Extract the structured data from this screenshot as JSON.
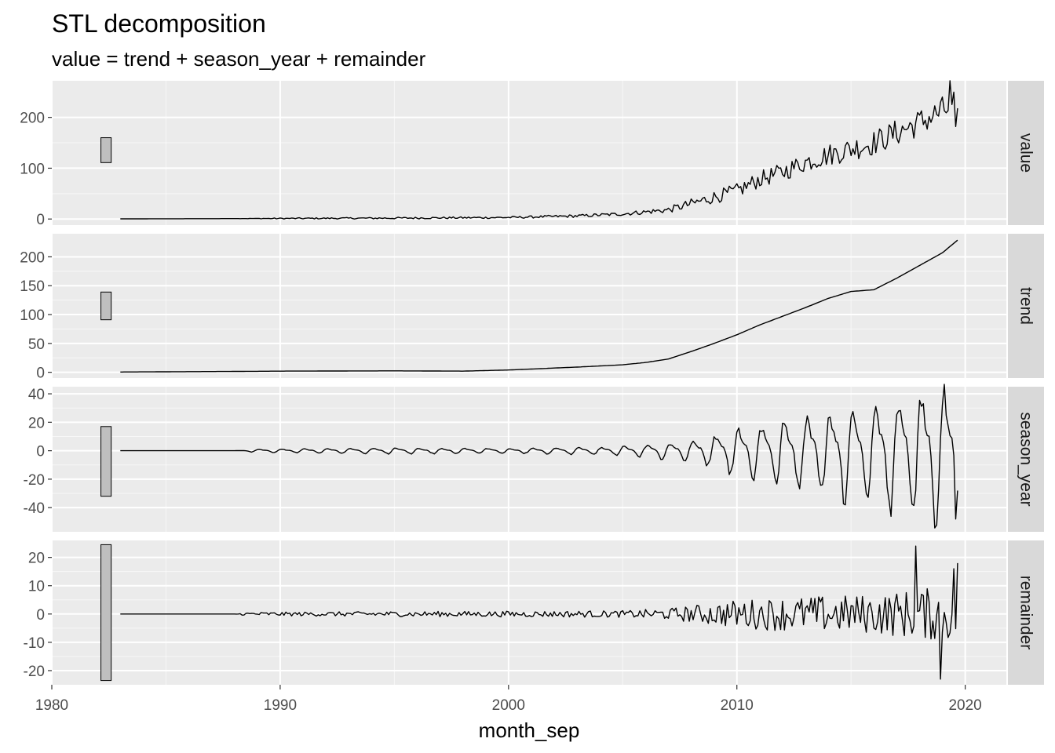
{
  "chart_data": {
    "type": "line",
    "title": "STL decomposition",
    "subtitle": "value = trend + season_year + remainder",
    "xlabel": "month_sep",
    "xlim": [
      1980,
      2021.8
    ],
    "x_ticks": [
      1980,
      1990,
      2000,
      2010,
      2020
    ],
    "x_tick_labels": [
      "1980",
      "1990",
      "2000",
      "2010",
      "2020"
    ],
    "x_start": 1983.0,
    "x_end": 2019.7,
    "grid": true,
    "theme_colors": {
      "panel": "#ebebeb",
      "grid": "#ffffff",
      "strip": "#d9d9d9",
      "line": "#000000",
      "scale_bar": "#bfbfbf"
    },
    "panels": [
      {
        "name": "value",
        "ylim": [
          -12,
          272
        ],
        "y_ticks": [
          0,
          100,
          200
        ],
        "y_tick_labels": [
          "0",
          "100",
          "200"
        ],
        "scale_bar": [
          111,
          160
        ],
        "keyframes": [
          [
            1983,
            0.3
          ],
          [
            1988,
            0.8
          ],
          [
            1995,
            1.8
          ],
          [
            2000,
            3
          ],
          [
            2003,
            6
          ],
          [
            2005,
            10
          ],
          [
            2007,
            18
          ],
          [
            2008,
            30
          ],
          [
            2009,
            43
          ],
          [
            2010,
            55
          ],
          [
            2011,
            78
          ],
          [
            2012,
            92
          ],
          [
            2013,
            112
          ],
          [
            2014,
            126
          ],
          [
            2015,
            138
          ],
          [
            2016,
            150
          ],
          [
            2017,
            170
          ],
          [
            2018,
            190
          ],
          [
            2019,
            212
          ],
          [
            2019.7,
            228
          ]
        ],
        "noise": [
          [
            1983,
            0
          ],
          [
            1988,
            0
          ],
          [
            1990,
            1.2
          ],
          [
            1995,
            1.8
          ],
          [
            2000,
            2
          ],
          [
            2005,
            3.5
          ],
          [
            2007,
            6
          ],
          [
            2008,
            10
          ],
          [
            2010,
            15
          ],
          [
            2012,
            18
          ],
          [
            2014,
            22
          ],
          [
            2016,
            25
          ],
          [
            2018,
            28
          ],
          [
            2019.7,
            32
          ]
        ],
        "extra_points": [
          [
            2019.3,
            272
          ],
          [
            2019.6,
            182
          ],
          [
            2019.7,
            218
          ]
        ]
      },
      {
        "name": "trend",
        "ylim": [
          -10,
          240
        ],
        "y_ticks": [
          0,
          50,
          100,
          150,
          200
        ],
        "y_tick_labels": [
          "0",
          "50",
          "100",
          "150",
          "200"
        ],
        "scale_bar": [
          91,
          139
        ],
        "keyframes": [
          [
            1983,
            0.5
          ],
          [
            1988,
            1.5
          ],
          [
            1990,
            2
          ],
          [
            1995,
            2.5
          ],
          [
            1998,
            2
          ],
          [
            2000,
            4
          ],
          [
            2003,
            9
          ],
          [
            2005,
            13
          ],
          [
            2006,
            17
          ],
          [
            2007,
            23
          ],
          [
            2008,
            36
          ],
          [
            2009,
            50
          ],
          [
            2010,
            65
          ],
          [
            2011,
            82
          ],
          [
            2012,
            97
          ],
          [
            2013,
            112
          ],
          [
            2014,
            128
          ],
          [
            2015,
            140
          ],
          [
            2016,
            143
          ],
          [
            2017,
            163
          ],
          [
            2018,
            185
          ],
          [
            2019,
            207
          ],
          [
            2019.7,
            230
          ]
        ],
        "noise": [
          [
            1983,
            0
          ],
          [
            2019.7,
            0
          ]
        ]
      },
      {
        "name": "season_year",
        "ylim": [
          -57,
          45
        ],
        "y_ticks": [
          -40,
          -20,
          0,
          20,
          40
        ],
        "y_tick_labels": [
          "-40",
          "-20",
          "0",
          "20",
          "40"
        ],
        "scale_bar": [
          -32,
          17
        ],
        "keyframes": [
          [
            1983,
            0
          ],
          [
            2019.7,
            0
          ]
        ],
        "seasonal_amplitude": [
          [
            1983,
            0
          ],
          [
            1988,
            0
          ],
          [
            1989,
            1
          ],
          [
            1995,
            2
          ],
          [
            2000,
            1.5
          ],
          [
            2004,
            2.5
          ],
          [
            2006,
            4
          ],
          [
            2008,
            7
          ],
          [
            2010,
            15
          ],
          [
            2012,
            22
          ],
          [
            2014,
            28
          ],
          [
            2016,
            35
          ],
          [
            2018,
            42
          ],
          [
            2019.7,
            46
          ]
        ],
        "extra_points": [
          [
            2019.55,
            -48
          ],
          [
            2019.65,
            -28
          ]
        ]
      },
      {
        "name": "remainder",
        "ylim": [
          -25,
          26
        ],
        "y_ticks": [
          -20,
          -10,
          0,
          10,
          20
        ],
        "y_tick_labels": [
          "-20",
          "-10",
          "0",
          "10",
          "20"
        ],
        "scale_bar": [
          -23.5,
          24.5
        ],
        "keyframes": [
          [
            1983,
            0
          ],
          [
            2019.7,
            0
          ]
        ],
        "noise": [
          [
            1983,
            0
          ],
          [
            1988,
            0
          ],
          [
            1988.5,
            0.6
          ],
          [
            1995,
            0.9
          ],
          [
            2000,
            1
          ],
          [
            2005,
            1.2
          ],
          [
            2007,
            2
          ],
          [
            2008,
            3
          ],
          [
            2010,
            5
          ],
          [
            2012,
            6
          ],
          [
            2014,
            6.5
          ],
          [
            2016,
            7
          ],
          [
            2018,
            9
          ],
          [
            2019.7,
            10
          ]
        ],
        "extra_points": [
          [
            2017.8,
            24
          ],
          [
            2018.9,
            -23
          ],
          [
            2019.5,
            16
          ],
          [
            2019.7,
            18
          ]
        ]
      }
    ]
  }
}
